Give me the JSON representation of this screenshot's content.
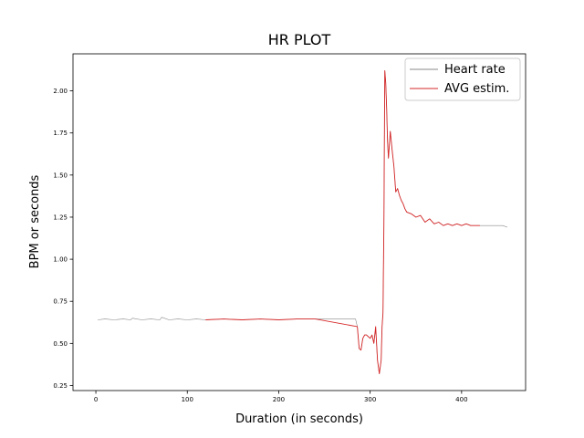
{
  "chart_data": {
    "type": "line",
    "title": "HR PLOT",
    "xlabel": "Duration (in seconds)",
    "ylabel": "BPM or seconds",
    "xlim": [
      -25,
      470
    ],
    "ylim": [
      0.22,
      2.22
    ],
    "xticks": [
      0,
      100,
      200,
      300,
      400
    ],
    "yticks": [
      0.25,
      0.5,
      0.75,
      1.0,
      1.25,
      1.5,
      1.75,
      2.0
    ],
    "ytick_labels": [
      "0.25",
      "0.50",
      "0.75",
      "1.00",
      "1.25",
      "1.50",
      "1.75",
      "2.00"
    ],
    "grid": false,
    "legend_position": "top-right",
    "series": [
      {
        "name": "Heart rate",
        "color": "#888888",
        "x": [
          2,
          10,
          20,
          30,
          38,
          40,
          50,
          60,
          70,
          72,
          80,
          90,
          100,
          110,
          120,
          140,
          160,
          180,
          200,
          220,
          240,
          260,
          280,
          284,
          286,
          288,
          290,
          292,
          294,
          296,
          298,
          300,
          302,
          304,
          305,
          306,
          308,
          310,
          312,
          313,
          314,
          315,
          316,
          317,
          318,
          319,
          320,
          322,
          324,
          326,
          328,
          330,
          332,
          334,
          336,
          338,
          340,
          345,
          350,
          355,
          360,
          365,
          370,
          375,
          380,
          385,
          390,
          395,
          400,
          405,
          410,
          415,
          420,
          425,
          430,
          435,
          440,
          445,
          450
        ],
        "y": [
          0.64,
          0.645,
          0.64,
          0.645,
          0.64,
          0.65,
          0.64,
          0.645,
          0.64,
          0.655,
          0.64,
          0.645,
          0.64,
          0.645,
          0.64,
          0.645,
          0.64,
          0.645,
          0.64,
          0.645,
          0.645,
          0.645,
          0.645,
          0.645,
          0.6,
          0.47,
          0.46,
          0.53,
          0.55,
          0.55,
          0.54,
          0.53,
          0.55,
          0.5,
          0.55,
          0.58,
          0.4,
          0.32,
          0.4,
          0.6,
          0.68,
          1.2,
          2.12,
          2.05,
          1.9,
          1.7,
          1.6,
          1.76,
          1.65,
          1.55,
          1.4,
          1.42,
          1.38,
          1.35,
          1.33,
          1.3,
          1.28,
          1.27,
          1.25,
          1.26,
          1.22,
          1.24,
          1.21,
          1.22,
          1.2,
          1.21,
          1.2,
          1.21,
          1.2,
          1.21,
          1.2,
          1.2,
          1.2,
          1.2,
          1.2,
          1.2,
          1.2,
          1.2,
          1.19
        ]
      },
      {
        "name": "AVG estim.",
        "color": "#d62728",
        "x": [
          120,
          140,
          160,
          180,
          200,
          220,
          240,
          286,
          288,
          290,
          292,
          294,
          296,
          298,
          300,
          302,
          304,
          305,
          306,
          308,
          310,
          312,
          313,
          314,
          315,
          316,
          317,
          318,
          319,
          320,
          322,
          324,
          326,
          328,
          330,
          332,
          334,
          336,
          338,
          340,
          345,
          350,
          355,
          360,
          365,
          370,
          375,
          380,
          385,
          390,
          395,
          400,
          405,
          410,
          415,
          420
        ],
        "y": [
          0.64,
          0.645,
          0.64,
          0.645,
          0.64,
          0.645,
          0.645,
          0.6,
          0.47,
          0.46,
          0.53,
          0.55,
          0.55,
          0.54,
          0.53,
          0.55,
          0.5,
          0.55,
          0.6,
          0.4,
          0.32,
          0.4,
          0.6,
          0.68,
          1.2,
          2.12,
          2.05,
          1.9,
          1.7,
          1.6,
          1.76,
          1.65,
          1.55,
          1.4,
          1.42,
          1.38,
          1.35,
          1.33,
          1.3,
          1.28,
          1.27,
          1.25,
          1.26,
          1.22,
          1.24,
          1.21,
          1.22,
          1.2,
          1.21,
          1.2,
          1.21,
          1.2,
          1.21,
          1.2,
          1.2,
          1.2
        ]
      }
    ]
  }
}
